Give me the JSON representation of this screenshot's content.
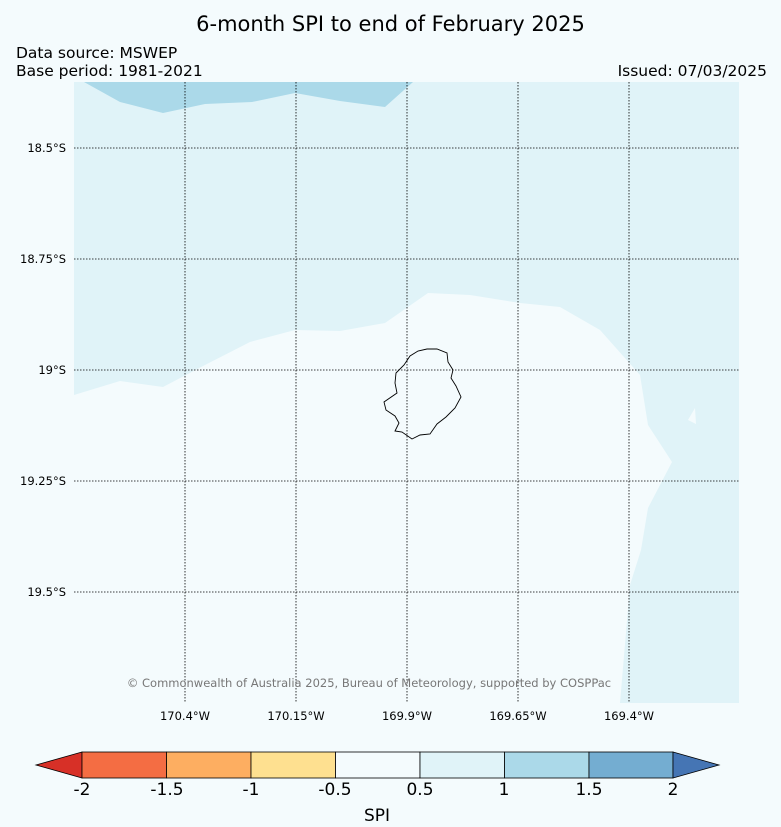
{
  "title": "6-month SPI to end of February 2025",
  "data_source": "Data source: MSWEP",
  "base_period": "Base period: 1981-2021",
  "issued": "Issued: 07/03/2025",
  "copyright": "© Commonwealth of Australia 2025, Bureau of Meteorology, supported by COSPPac",
  "lat_labels": [
    "18.5°S",
    "18.75°S",
    "19°S",
    "19.25°S",
    "19.5°S"
  ],
  "lon_labels": [
    "170.4°W",
    "170.15°W",
    "169.9°W",
    "169.65°W",
    "169.4°W"
  ],
  "colorbar": {
    "label": "SPI",
    "ticks": [
      "-2",
      "-1.5",
      "-1",
      "-0.5",
      "0.5",
      "1",
      "1.5",
      "2"
    ],
    "colors": {
      "below_min": "#d73027",
      "-2_to_-1.5": "#f46d43",
      "-1.5_to_-1": "#fdae61",
      "-1_to_-0.5": "#fee090",
      "-0.5_to_0.5": "#f4fbfd",
      "0.5_to_1": "#e0f3f8",
      "1_to_1.5": "#abd9e9",
      "1.5_to_2": "#74add1",
      "above_max": "#4575b4"
    }
  }
}
